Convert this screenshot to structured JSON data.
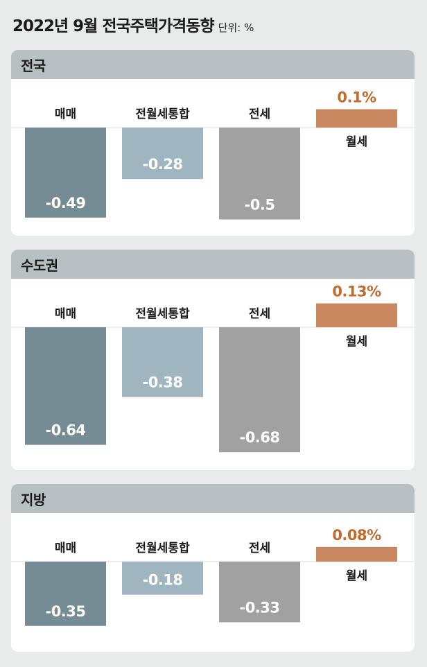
{
  "title": "2022년 9월 전국주택가격동향",
  "unit_label": "단위: %",
  "colors": {
    "sale": "#758c94",
    "combined": "#9fb5c0",
    "jeonse": "#a1a1a1",
    "monthly": "#c8875e",
    "monthly_value_text": "#c36a2d",
    "header": "#b8c0c3"
  },
  "chart_data": [
    {
      "type": "bar",
      "title": "전국",
      "categories": [
        "매매",
        "전월세통합",
        "전세",
        "월세"
      ],
      "values": [
        -0.49,
        -0.28,
        -0.5,
        0.1
      ],
      "labels": [
        "-0.49",
        "-0.28",
        "-0.5",
        "0.1%"
      ]
    },
    {
      "type": "bar",
      "title": "수도권",
      "categories": [
        "매매",
        "전월세통합",
        "전세",
        "월세"
      ],
      "values": [
        -0.64,
        -0.38,
        -0.68,
        0.13
      ],
      "labels": [
        "-0.64",
        "-0.38",
        "-0.68",
        "0.13%"
      ]
    },
    {
      "type": "bar",
      "title": "지방",
      "categories": [
        "매매",
        "전월세통합",
        "전세",
        "월세"
      ],
      "values": [
        -0.35,
        -0.18,
        -0.33,
        0.08
      ],
      "labels": [
        "-0.35",
        "-0.18",
        "-0.33",
        "0.08%"
      ]
    }
  ]
}
